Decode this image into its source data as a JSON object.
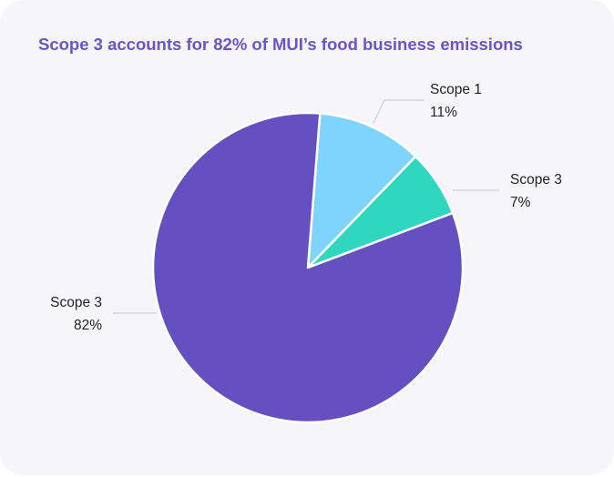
{
  "chart_data": {
    "type": "pie",
    "title": "Scope 3 accounts for 82% of MUI’s food business emissions",
    "slices": [
      {
        "label": "Scope 1",
        "value": 11,
        "value_label": "11%",
        "color": "#7fd4fe"
      },
      {
        "label": "Scope 3",
        "value": 7,
        "value_label": "7%",
        "color": "#2fd6c0"
      },
      {
        "label": "Scope 3",
        "value": 82,
        "value_label": "82%",
        "color": "#6550c2"
      }
    ]
  }
}
